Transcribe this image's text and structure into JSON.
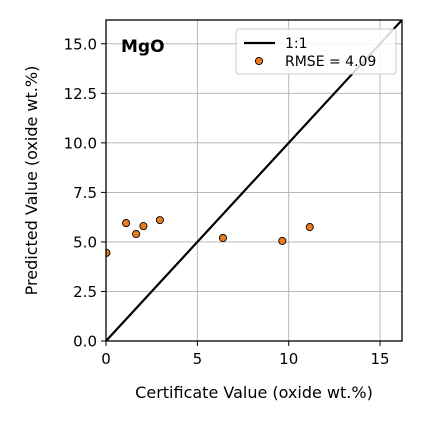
{
  "chart_data": {
    "type": "scatter",
    "title": "MgO",
    "xlabel": "Certificate Value (oxide wt.%)",
    "ylabel": "Predicted Value (oxide wt.%)",
    "xlim": [
      0,
      16.2
    ],
    "ylim": [
      0,
      16.2
    ],
    "xticks": [
      {
        "value": 0,
        "label": "0"
      },
      {
        "value": 5,
        "label": "5"
      },
      {
        "value": 10,
        "label": "10"
      },
      {
        "value": 15,
        "label": "15"
      }
    ],
    "yticks": [
      {
        "value": 0,
        "label": "0.0"
      },
      {
        "value": 2.5,
        "label": "2.5"
      },
      {
        "value": 5,
        "label": "5.0"
      },
      {
        "value": 7.5,
        "label": "7.5"
      },
      {
        "value": 10,
        "label": "10.0"
      },
      {
        "value": 12.5,
        "label": "12.5"
      },
      {
        "value": 15,
        "label": "15.0"
      }
    ],
    "grid": true,
    "legend_position": "top-right",
    "series": [
      {
        "name": "1:1",
        "kind": "line",
        "color": "#000000",
        "x": [
          0,
          16.2
        ],
        "y": [
          0,
          16.2
        ]
      },
      {
        "name": "RMSE = 4.09",
        "kind": "scatter",
        "color": "#e87c1e",
        "edgecolor": "#000000",
        "x": [
          0.02,
          1.1,
          1.65,
          2.05,
          2.95,
          6.4,
          9.65,
          11.15
        ],
        "y": [
          4.45,
          5.95,
          5.4,
          5.8,
          6.1,
          5.2,
          5.05,
          5.75
        ]
      }
    ]
  }
}
